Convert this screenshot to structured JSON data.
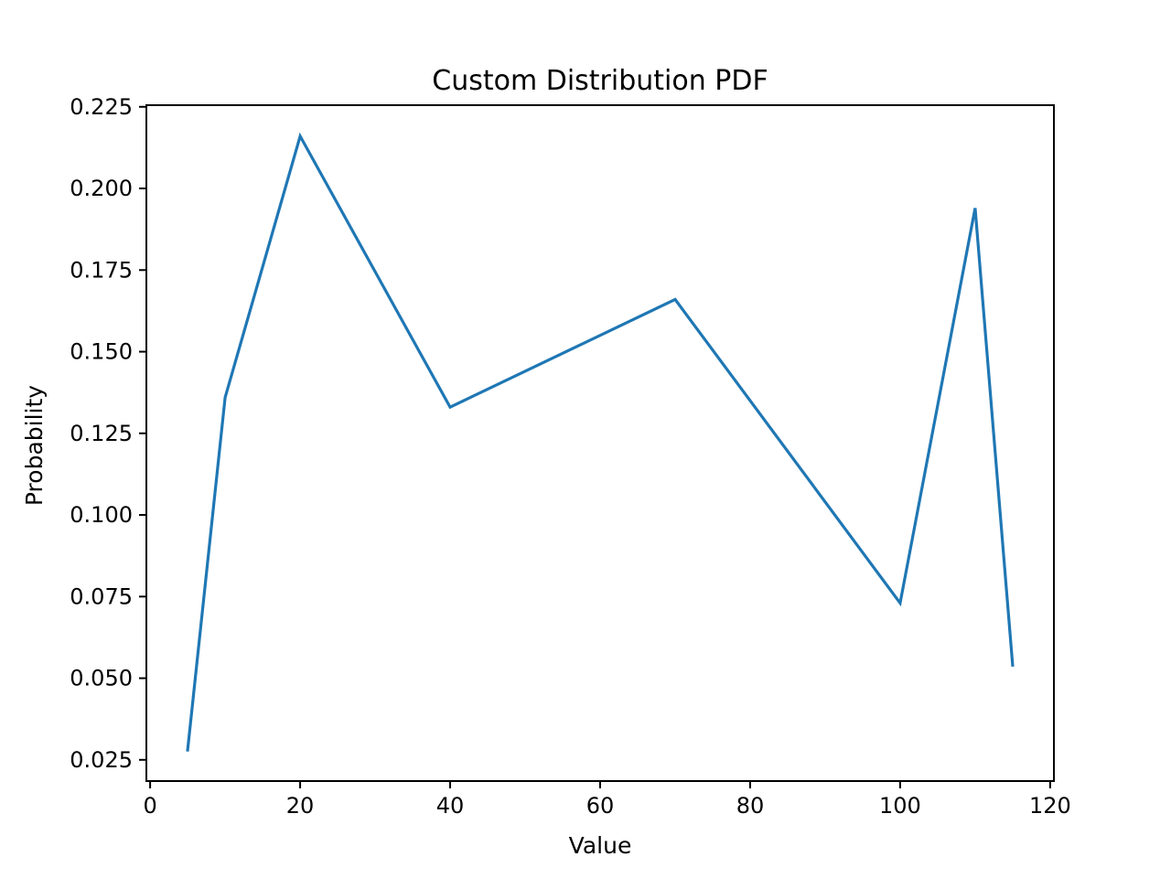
{
  "chart_data": {
    "type": "line",
    "title": "Custom Distribution PDF",
    "xlabel": "Value",
    "ylabel": "Probability",
    "xlim": [
      -0.5,
      120.5
    ],
    "ylim": [
      0.0185,
      0.2255
    ],
    "xticks": [
      0,
      20,
      40,
      60,
      80,
      100,
      120
    ],
    "yticks": [
      0.025,
      0.05,
      0.075,
      0.1,
      0.125,
      0.15,
      0.175,
      0.2,
      0.225
    ],
    "ytick_labels": [
      "0.025",
      "0.050",
      "0.075",
      "0.100",
      "0.125",
      "0.150",
      "0.175",
      "0.200",
      "0.225"
    ],
    "grid": false,
    "series": [
      {
        "color": "#1f77b4",
        "x": [
          5,
          10,
          20,
          40,
          70,
          100,
          110,
          115
        ],
        "y": [
          0.028,
          0.136,
          0.216,
          0.133,
          0.166,
          0.073,
          0.194,
          0.054
        ]
      }
    ]
  }
}
